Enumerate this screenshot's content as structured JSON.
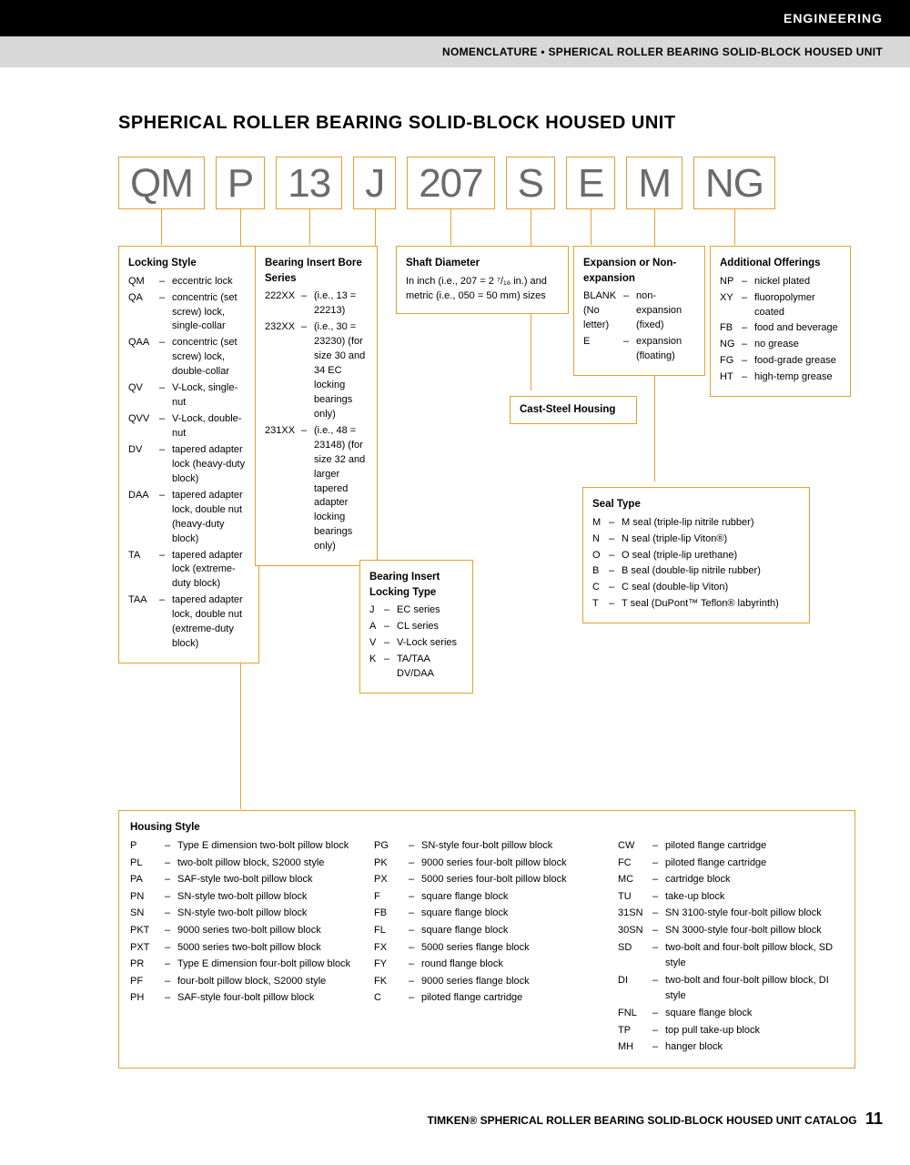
{
  "header": {
    "category": "ENGINEERING",
    "subheading": "NOMENCLATURE • SPHERICAL ROLLER BEARING SOLID-BLOCK HOUSED UNIT"
  },
  "title": "SPHERICAL ROLLER BEARING SOLID-BLOCK HOUSED UNIT",
  "codes": [
    "QM",
    "P",
    "13",
    "J",
    "207",
    "S",
    "E",
    "M",
    "NG"
  ],
  "locking_style": {
    "title": "Locking Style",
    "items": [
      {
        "c": "QM",
        "d": "eccentric lock"
      },
      {
        "c": "QA",
        "d": "concentric (set screw) lock, single-collar"
      },
      {
        "c": "QAA",
        "d": "concentric (set screw) lock, double-collar"
      },
      {
        "c": "QV",
        "d": "V-Lock, single-nut"
      },
      {
        "c": "QVV",
        "d": "V-Lock, double-nut"
      },
      {
        "c": "DV",
        "d": "tapered adapter lock (heavy-duty block)"
      },
      {
        "c": "DAA",
        "d": "tapered adapter lock, double nut (heavy-duty block)"
      },
      {
        "c": "TA",
        "d": "tapered adapter lock (extreme-duty block)"
      },
      {
        "c": "TAA",
        "d": "tapered adapter lock, double nut (extreme-duty block)"
      }
    ]
  },
  "bore_series": {
    "title": "Bearing Insert Bore Series",
    "items": [
      {
        "c": "222XX",
        "d": "(i.e., 13 = 22213)"
      },
      {
        "c": "232XX",
        "d": "(i.e., 30 = 23230) (for size 30 and 34 EC locking bearings only)"
      },
      {
        "c": "231XX",
        "d": "(i.e., 48 = 23148) (for size 32 and larger tapered adapter locking bearings only)"
      }
    ]
  },
  "locking_type": {
    "title": "Bearing Insert Locking Type",
    "items": [
      {
        "c": "J",
        "d": "EC series"
      },
      {
        "c": "A",
        "d": "CL series"
      },
      {
        "c": "V",
        "d": "V-Lock series"
      },
      {
        "c": "K",
        "d": "TA/TAA DV/DAA"
      }
    ]
  },
  "shaft": {
    "title": "Shaft Diameter",
    "text": "In inch (i.e., 207 = 2 ⁷/₁₆ in.) and metric (i.e., 050 = 50 mm) sizes"
  },
  "cast": {
    "title": "Cast-Steel Housing"
  },
  "expansion": {
    "title": "Expansion or Non-expansion",
    "items": [
      {
        "c": "BLANK (No letter)",
        "d": "non-expansion (fixed)"
      },
      {
        "c": "E",
        "d": "expansion (floating)"
      }
    ]
  },
  "seal": {
    "title": "Seal Type",
    "items": [
      {
        "c": "M",
        "d": "M seal (triple-lip nitrile rubber)"
      },
      {
        "c": "N",
        "d": "N seal (triple-lip Viton®)"
      },
      {
        "c": "O",
        "d": "O seal (triple-lip urethane)"
      },
      {
        "c": "B",
        "d": "B seal (double-lip nitrile rubber)"
      },
      {
        "c": "C",
        "d": "C seal (double-lip Viton)"
      },
      {
        "c": "T",
        "d": "T seal (DuPont™ Teflon® labyrinth)"
      }
    ]
  },
  "additional": {
    "title": "Additional Offerings",
    "items": [
      {
        "c": "NP",
        "d": "nickel plated"
      },
      {
        "c": "XY",
        "d": "fluoropolymer coated"
      },
      {
        "c": "FB",
        "d": "food and beverage"
      },
      {
        "c": "NG",
        "d": "no grease"
      },
      {
        "c": "FG",
        "d": "food-grade grease"
      },
      {
        "c": "HT",
        "d": "high-temp grease"
      }
    ]
  },
  "housing": {
    "title": "Housing Style",
    "col1": [
      {
        "c": "P",
        "d": "Type E dimension two-bolt pillow block"
      },
      {
        "c": "PL",
        "d": "two-bolt pillow block, S2000 style"
      },
      {
        "c": "PA",
        "d": "SAF-style two-bolt pillow block"
      },
      {
        "c": "PN",
        "d": "SN-style two-bolt pillow block"
      },
      {
        "c": "SN",
        "d": "SN-style two-bolt pillow block"
      },
      {
        "c": "PKT",
        "d": "9000 series two-bolt pillow block"
      },
      {
        "c": "PXT",
        "d": "5000 series two-bolt pillow block"
      },
      {
        "c": "PR",
        "d": "Type E dimension four-bolt pillow block"
      },
      {
        "c": "PF",
        "d": "four-bolt pillow block, S2000 style"
      },
      {
        "c": "PH",
        "d": "SAF-style four-bolt pillow block"
      }
    ],
    "col2": [
      {
        "c": "PG",
        "d": "SN-style four-bolt pillow block"
      },
      {
        "c": "PK",
        "d": "9000 series four-bolt pillow block"
      },
      {
        "c": "PX",
        "d": "5000 series four-bolt pillow block"
      },
      {
        "c": "F",
        "d": "square flange block"
      },
      {
        "c": "FB",
        "d": "square flange block"
      },
      {
        "c": "FL",
        "d": "square flange block"
      },
      {
        "c": "FX",
        "d": "5000 series flange block"
      },
      {
        "c": "FY",
        "d": "round flange block"
      },
      {
        "c": "FK",
        "d": "9000 series flange block"
      },
      {
        "c": "C",
        "d": "piloted flange cartridge"
      }
    ],
    "col3": [
      {
        "c": "CW",
        "d": "piloted flange cartridge"
      },
      {
        "c": "FC",
        "d": "piloted flange cartridge"
      },
      {
        "c": "MC",
        "d": "cartridge block"
      },
      {
        "c": "TU",
        "d": "take-up block"
      },
      {
        "c": "31SN",
        "d": "SN 3100-style four-bolt pillow block"
      },
      {
        "c": "30SN",
        "d": "SN 3000-style four-bolt pillow block"
      },
      {
        "c": "SD",
        "d": "two-bolt and four-bolt pillow block, SD style"
      },
      {
        "c": "DI",
        "d": "two-bolt and four-bolt pillow block, DI style"
      },
      {
        "c": "FNL",
        "d": "square flange block"
      },
      {
        "c": "TP",
        "d": "top pull take-up block"
      },
      {
        "c": "MH",
        "d": "hanger block"
      }
    ]
  },
  "footer": {
    "text": "TIMKEN® SPHERICAL ROLLER BEARING SOLID-BLOCK HOUSED UNIT CATALOG",
    "page": "11"
  },
  "colors": {
    "accent": "#e8a030",
    "text_gray": "#6b6b6b"
  }
}
